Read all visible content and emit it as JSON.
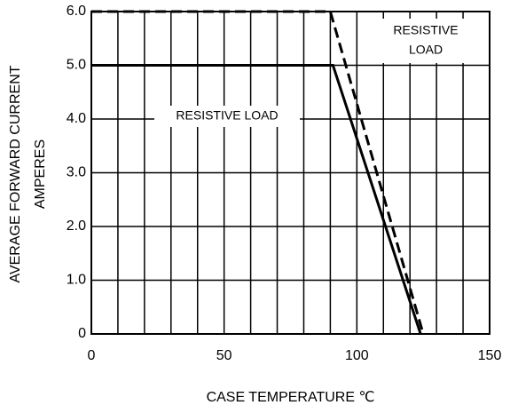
{
  "chart_data": {
    "type": "line",
    "xlabel": "CASE TEMPERATURE ℃",
    "ylabel": [
      "AVERAGE FORWARD CURRENT",
      "AMPERES"
    ],
    "xlim": [
      0,
      150
    ],
    "xticks": [
      0,
      50,
      100,
      150
    ],
    "x_minor_ticks": [
      0,
      10,
      20,
      30,
      40,
      50,
      60,
      70,
      80,
      90,
      100,
      110,
      120,
      130,
      140,
      150
    ],
    "ylim": [
      0,
      6
    ],
    "yticks": [
      0,
      {
        "value": 1,
        "label": "1.0"
      },
      {
        "value": 2,
        "label": "2.0"
      },
      {
        "value": 3,
        "label": "3.0"
      },
      {
        "value": 4,
        "label": "4.0"
      },
      {
        "value": 5,
        "label": "5.0"
      },
      {
        "value": 6,
        "label": "6.0"
      }
    ],
    "grid": true,
    "series": [
      {
        "color": "#000000",
        "style": "solid",
        "x": [
          0,
          91,
          124
        ],
        "values": [
          5,
          5,
          0
        ]
      },
      {
        "color": "#000000",
        "style": "dashed",
        "x": [
          0,
          90,
          125
        ],
        "values": [
          6,
          6,
          0
        ]
      }
    ],
    "annotations": [
      {
        "lines": [
          "RESISTIVE LOAD"
        ]
      },
      {
        "lines": [
          "RESISTIVE",
          "LOAD"
        ]
      }
    ]
  }
}
